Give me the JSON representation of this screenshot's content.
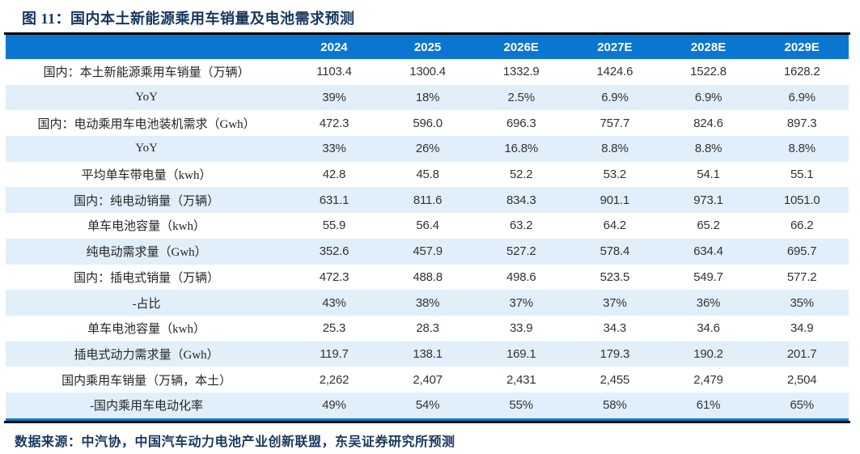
{
  "title": "图 11：国内本土新能源乘用车销量及电池需求预测",
  "source": "数据来源：中汽协，中国汽车动力电池产业创新联盟，东吴证券研究所预测",
  "colors": {
    "header_bg": "#0B76D1",
    "row_alt_bg": "#E1EFFB",
    "title_color": "#17375E",
    "rule_color": "#000000",
    "text_color": "#333333",
    "header_text": "#FFFFFF"
  },
  "chart_data": {
    "type": "table",
    "title": "国内本土新能源乘用车销量及电池需求预测",
    "columns": [
      "2024",
      "2025",
      "2026E",
      "2027E",
      "2028E",
      "2029E"
    ],
    "rows": [
      {
        "label": "国内：本土新能源乘用车销量（万辆）",
        "values": [
          "1103.4",
          "1300.4",
          "1332.9",
          "1424.6",
          "1522.8",
          "1628.2"
        ]
      },
      {
        "label": "YoY",
        "values": [
          "39%",
          "18%",
          "2.5%",
          "6.9%",
          "6.9%",
          "6.9%"
        ]
      },
      {
        "label": "国内：电动乘用车电池装机需求（Gwh）",
        "values": [
          "472.3",
          "596.0",
          "696.3",
          "757.7",
          "824.6",
          "897.3"
        ]
      },
      {
        "label": "YoY",
        "values": [
          "33%",
          "26%",
          "16.8%",
          "8.8%",
          "8.8%",
          "8.8%"
        ]
      },
      {
        "label": "平均单车带电量（kwh）",
        "values": [
          "42.8",
          "45.8",
          "52.2",
          "53.2",
          "54.1",
          "55.1"
        ]
      },
      {
        "label": "国内：纯电动销量（万辆）",
        "values": [
          "631.1",
          "811.6",
          "834.3",
          "901.1",
          "973.1",
          "1051.0"
        ]
      },
      {
        "label": "单车电池容量（kwh）",
        "values": [
          "55.9",
          "56.4",
          "63.2",
          "64.2",
          "65.2",
          "66.2"
        ]
      },
      {
        "label": "纯电动需求量（Gwh）",
        "values": [
          "352.6",
          "457.9",
          "527.2",
          "578.4",
          "634.4",
          "695.7"
        ]
      },
      {
        "label": "国内：插电式销量（万辆）",
        "values": [
          "472.3",
          "488.8",
          "498.6",
          "523.5",
          "549.7",
          "577.2"
        ]
      },
      {
        "label": "-占比",
        "values": [
          "43%",
          "38%",
          "37%",
          "37%",
          "36%",
          "35%"
        ]
      },
      {
        "label": "单车电池容量（kwh）",
        "values": [
          "25.3",
          "28.3",
          "33.9",
          "34.3",
          "34.6",
          "34.9"
        ]
      },
      {
        "label": "插电式动力需求量（Gwh）",
        "values": [
          "119.7",
          "138.1",
          "169.1",
          "179.3",
          "190.2",
          "201.7"
        ]
      },
      {
        "label": "国内乘用车销量（万辆，本土）",
        "values": [
          "2,262",
          "2,407",
          "2,431",
          "2,455",
          "2,479",
          "2,504"
        ]
      },
      {
        "label": "-国内乘用车电动化率",
        "values": [
          "49%",
          "54%",
          "55%",
          "58%",
          "61%",
          "65%"
        ]
      }
    ]
  }
}
